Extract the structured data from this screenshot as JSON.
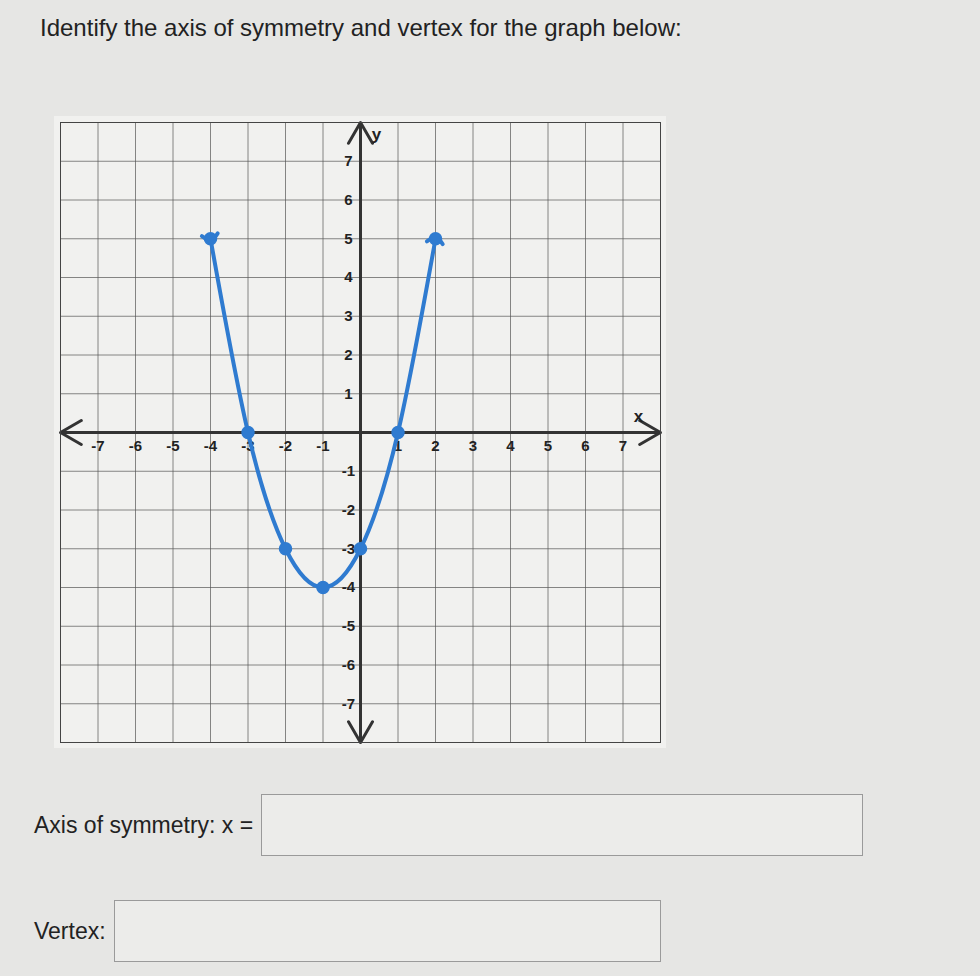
{
  "question": "Identify the axis of symmetry and vertex for the graph below:",
  "chart_data": {
    "type": "line",
    "x_label": "x",
    "y_label": "y",
    "x": [
      -4,
      -3,
      -2,
      -1,
      0,
      1,
      2
    ],
    "values": [
      5,
      0,
      -3,
      -4,
      -3,
      0,
      5
    ],
    "color": "#2f7bd0",
    "marker": "circle",
    "xlim": [
      -8,
      8
    ],
    "ylim": [
      -8,
      8
    ],
    "xticks": [
      -7,
      -6,
      -5,
      -4,
      -3,
      -2,
      -1,
      1,
      2,
      3,
      4,
      5,
      6,
      7
    ],
    "yticks": [
      7,
      6,
      5,
      4,
      3,
      2,
      1,
      -1,
      -2,
      -3,
      -4,
      -5,
      -6,
      -7
    ],
    "grid": true
  },
  "form": {
    "fields": [
      "Axis of symmetry: x =",
      "Vertex:"
    ]
  }
}
